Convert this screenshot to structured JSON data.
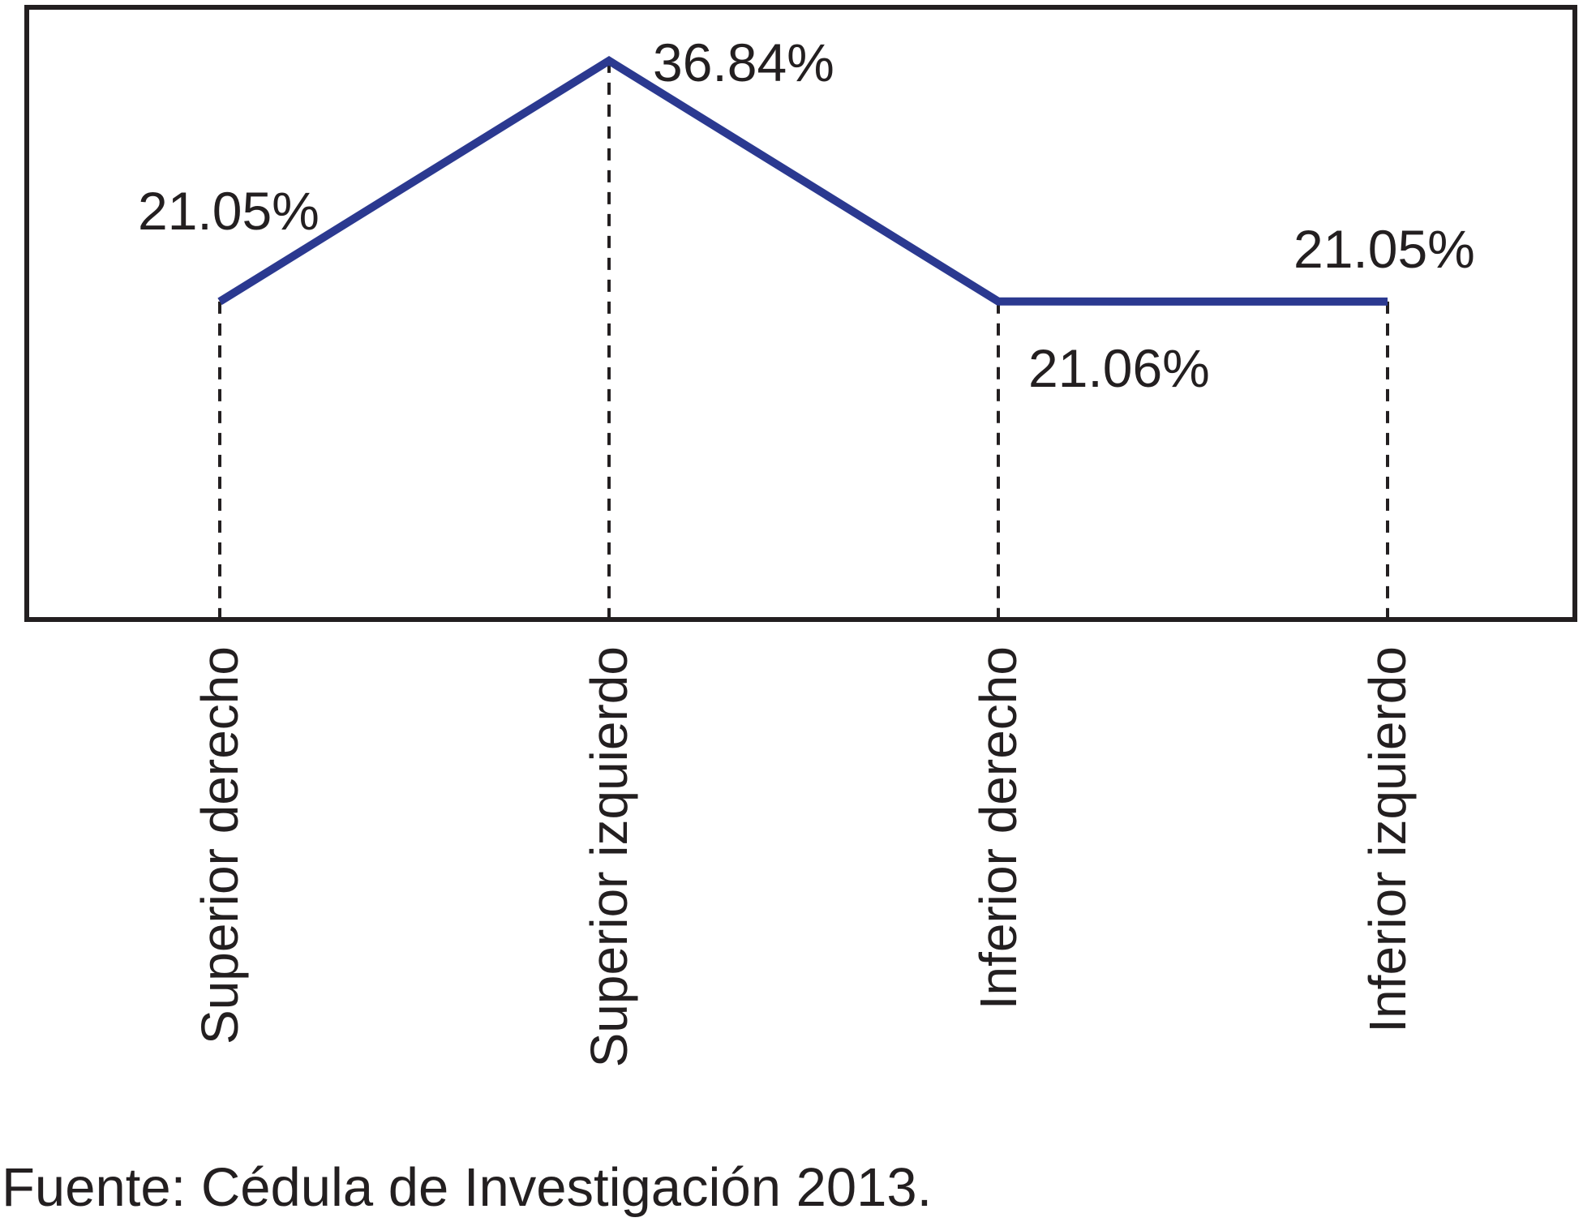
{
  "chart_data": {
    "type": "line",
    "title": "",
    "categories": [
      "Superior derecho",
      "Superior izquierdo",
      "Inferior derecho",
      "Inferior izquierdo"
    ],
    "values": [
      21.05,
      36.84,
      21.06,
      21.05
    ],
    "value_labels": [
      "21.05%",
      "36.84%",
      "21.06%",
      "21.05%"
    ],
    "xlabel": "",
    "ylabel": "",
    "ylim": [
      0,
      40.5
    ],
    "grid": "dashed vertical leader line from each data point down to the baseline",
    "legend_position": "none",
    "line_color": "#2b3990",
    "axis_color": "#231f20",
    "text_color": "#231f20"
  },
  "source_note": "Fuente: Cédula de Investigación 2013."
}
